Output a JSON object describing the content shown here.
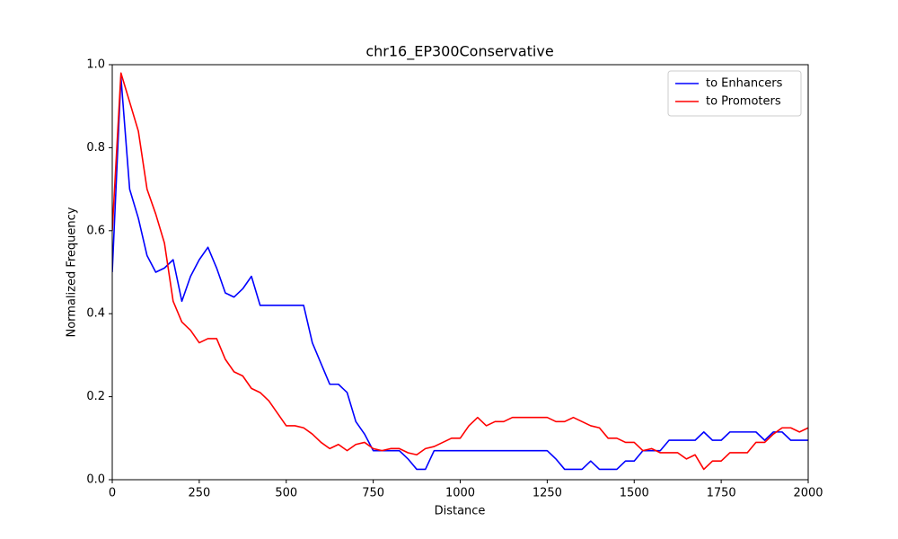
{
  "chart_data": {
    "type": "line",
    "title": "chr16_EP300Conservative",
    "x_label": "Distance",
    "y_label": "Normalized Frequency",
    "x": [
      0,
      25,
      50,
      75,
      100,
      125,
      150,
      175,
      200,
      225,
      250,
      275,
      300,
      325,
      350,
      375,
      400,
      425,
      450,
      475,
      500,
      525,
      550,
      575,
      600,
      625,
      650,
      675,
      700,
      725,
      750,
      775,
      800,
      825,
      850,
      875,
      900,
      925,
      950,
      975,
      1000,
      1025,
      1050,
      1075,
      1100,
      1125,
      1150,
      1175,
      1200,
      1225,
      1250,
      1275,
      1300,
      1325,
      1350,
      1375,
      1400,
      1425,
      1450,
      1475,
      1500,
      1525,
      1550,
      1575,
      1600,
      1625,
      1650,
      1675,
      1700,
      1725,
      1750,
      1775,
      1800,
      1825,
      1850,
      1875,
      1900,
      1925,
      1950,
      1975,
      2000
    ],
    "series": [
      {
        "name": "to Enhancers",
        "color": "#0000ff",
        "values": [
          0.5,
          0.97,
          0.7,
          0.63,
          0.54,
          0.5,
          0.51,
          0.53,
          0.43,
          0.49,
          0.53,
          0.56,
          0.51,
          0.45,
          0.44,
          0.46,
          0.49,
          0.42,
          0.42,
          0.42,
          0.42,
          0.42,
          0.42,
          0.33,
          0.28,
          0.23,
          0.23,
          0.21,
          0.14,
          0.11,
          0.07,
          0.07,
          0.07,
          0.07,
          0.05,
          0.025,
          0.025,
          0.07,
          0.07,
          0.07,
          0.07,
          0.07,
          0.07,
          0.07,
          0.07,
          0.07,
          0.07,
          0.07,
          0.07,
          0.07,
          0.07,
          0.05,
          0.025,
          0.025,
          0.025,
          0.045,
          0.025,
          0.025,
          0.025,
          0.045,
          0.045,
          0.07,
          0.07,
          0.07,
          0.095,
          0.095,
          0.095,
          0.095,
          0.115,
          0.095,
          0.095,
          0.115,
          0.115,
          0.115,
          0.115,
          0.095,
          0.115,
          0.115,
          0.095,
          0.095,
          0.095
        ]
      },
      {
        "name": "to Promoters",
        "color": "#ff0000",
        "values": [
          0.6,
          0.98,
          0.91,
          0.84,
          0.7,
          0.64,
          0.57,
          0.43,
          0.38,
          0.36,
          0.33,
          0.34,
          0.34,
          0.29,
          0.26,
          0.25,
          0.22,
          0.21,
          0.19,
          0.16,
          0.13,
          0.13,
          0.125,
          0.11,
          0.09,
          0.075,
          0.085,
          0.07,
          0.085,
          0.09,
          0.075,
          0.07,
          0.075,
          0.075,
          0.065,
          0.06,
          0.075,
          0.08,
          0.09,
          0.1,
          0.1,
          0.13,
          0.15,
          0.13,
          0.14,
          0.14,
          0.15,
          0.15,
          0.15,
          0.15,
          0.15,
          0.14,
          0.14,
          0.15,
          0.14,
          0.13,
          0.125,
          0.1,
          0.1,
          0.09,
          0.09,
          0.07,
          0.075,
          0.065,
          0.065,
          0.065,
          0.05,
          0.06,
          0.025,
          0.045,
          0.045,
          0.065,
          0.065,
          0.065,
          0.09,
          0.09,
          0.11,
          0.125,
          0.125,
          0.115,
          0.125
        ]
      }
    ],
    "xlim": [
      0,
      2000
    ],
    "xticks": [
      0,
      250,
      500,
      750,
      1000,
      1250,
      1500,
      1750,
      2000
    ],
    "ylim": [
      0,
      1
    ],
    "yticks": [
      {
        "value": 0,
        "label": "0.0"
      },
      0.2,
      0.4,
      0.6,
      0.8,
      {
        "value": 1,
        "label": "1.0"
      }
    ],
    "legend": "upper right"
  }
}
